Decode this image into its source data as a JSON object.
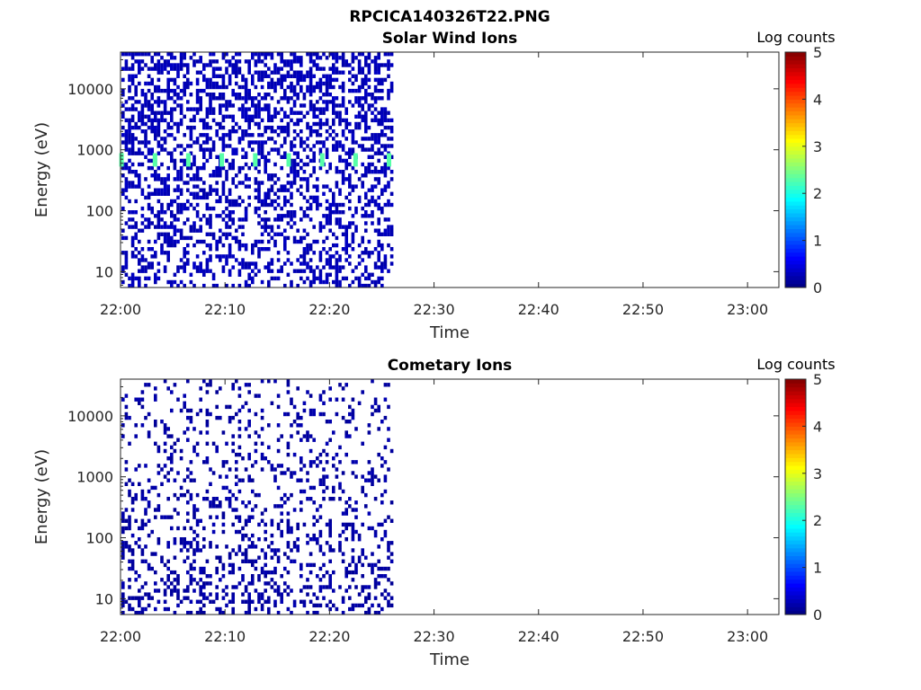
{
  "figure_title": "RPCICA140326T22.PNG",
  "chart_data": [
    {
      "type": "heatmap",
      "title": "Solar Wind Ions",
      "xlabel": "Time",
      "ylabel": "Energy (eV)",
      "x_ticks": [
        "22:00",
        "22:10",
        "22:20",
        "22:30",
        "22:40",
        "22:50",
        "23:00"
      ],
      "x_range": [
        "22:00",
        "23:03"
      ],
      "data_end": "22:26",
      "y_scale": "log",
      "y_ticks": [
        10,
        100,
        1000,
        10000
      ],
      "y_tick_labels": [
        "10",
        "100",
        "1000",
        "10000"
      ],
      "y_range": [
        5.5,
        40000
      ],
      "colorbar": {
        "title": "Log counts",
        "range": [
          0,
          5
        ],
        "ticks": [
          "0",
          "1",
          "2",
          "3",
          "4",
          "5"
        ],
        "colormap": "jet"
      },
      "background_density": {
        "high_energy": 0.55,
        "low_energy": 0.35
      },
      "peak_band": {
        "energy_low": 530,
        "energy_high": 880,
        "period_minutes": 3.2,
        "peak_log_counts": 2.3
      },
      "typical_log_counts": 0.2
    },
    {
      "type": "heatmap",
      "title": "Cometary Ions",
      "xlabel": "Time",
      "ylabel": "Energy (eV)",
      "x_ticks": [
        "22:00",
        "22:10",
        "22:20",
        "22:30",
        "22:40",
        "22:50",
        "23:00"
      ],
      "x_range": [
        "22:00",
        "23:03"
      ],
      "data_end": "22:26",
      "y_scale": "log",
      "y_ticks": [
        10,
        100,
        1000,
        10000
      ],
      "y_tick_labels": [
        "10",
        "100",
        "1000",
        "10000"
      ],
      "y_range": [
        5.5,
        40000
      ],
      "colorbar": {
        "title": "Log counts",
        "range": [
          0,
          5
        ],
        "ticks": [
          "0",
          "1",
          "2",
          "3",
          "4",
          "5"
        ],
        "colormap": "jet"
      },
      "background_density": {
        "high_energy": 0.12,
        "low_energy": 0.3
      },
      "typical_log_counts": 0.1
    }
  ]
}
